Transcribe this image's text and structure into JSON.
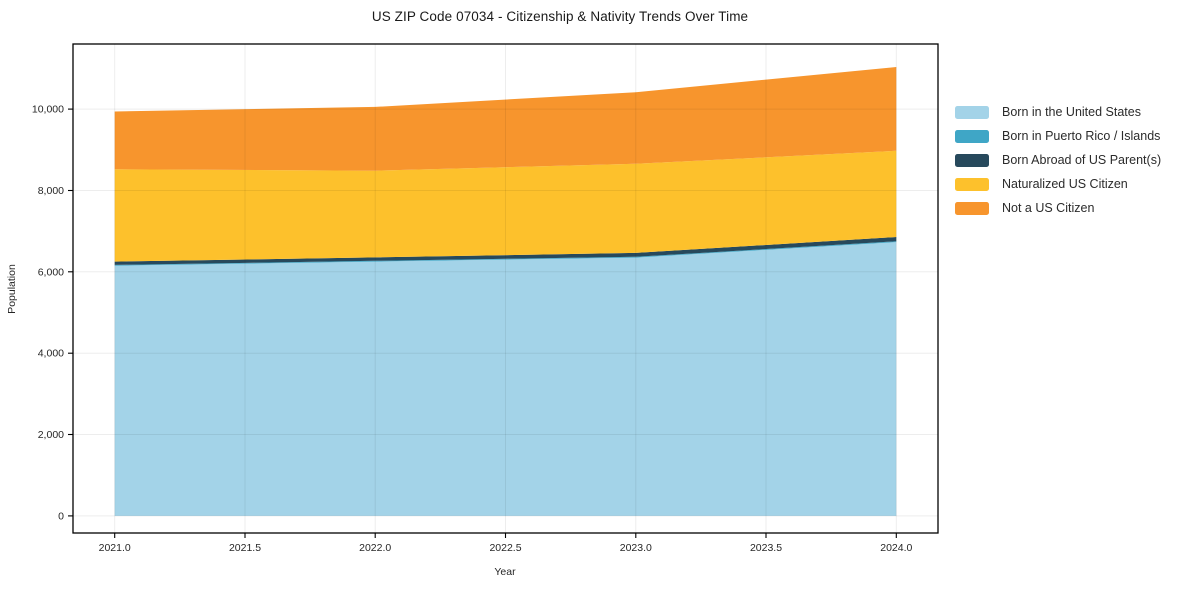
{
  "chart_data": {
    "type": "area",
    "stacked": true,
    "title": "US ZIP Code 07034 - Citizenship & Nativity Trends Over Time",
    "xlabel": "Year",
    "ylabel": "Population",
    "x": [
      2021,
      2022,
      2023,
      2024
    ],
    "series": [
      {
        "name": "Born in the United States",
        "color": "#a3d3e8",
        "values": [
          6150,
          6250,
          6350,
          6730
        ]
      },
      {
        "name": "Born in Puerto Rico / Islands",
        "color": "#3fa6c6",
        "values": [
          20,
          20,
          20,
          20
        ]
      },
      {
        "name": "Born Abroad of US Parent(s)",
        "color": "#27495c",
        "values": [
          80,
          85,
          95,
          105
        ]
      },
      {
        "name": "Naturalized US Citizen",
        "color": "#fdc12c",
        "values": [
          2270,
          2130,
          2190,
          2120
        ]
      },
      {
        "name": "Not a US Citizen",
        "color": "#f7952d",
        "values": [
          1420,
          1570,
          1760,
          2060
        ]
      }
    ],
    "stack_totals": [
      9940,
      10055,
      10415,
      11035
    ],
    "x_ticks": {
      "values": [
        2021,
        2021.5,
        2022,
        2022.5,
        2023,
        2023.5,
        2024
      ],
      "labels": [
        "2021.0",
        "2021.5",
        "2022.0",
        "2022.5",
        "2023.0",
        "2023.5",
        "2024.0"
      ]
    },
    "y_ticks": {
      "values": [
        0,
        2000,
        4000,
        6000,
        8000,
        10000
      ],
      "labels": [
        "0",
        "2,000",
        "4,000",
        "6,000",
        "8,000",
        "10,000"
      ]
    },
    "xlim": [
      2020.84,
      2024.16
    ],
    "ylim": [
      -420,
      11600
    ],
    "grid": true,
    "legend_position": "right",
    "colors": {
      "background": "#ffffff",
      "spine": "#000000",
      "grid": "rgba(0,0,0,0.07)",
      "tick_text": "#262626"
    }
  }
}
